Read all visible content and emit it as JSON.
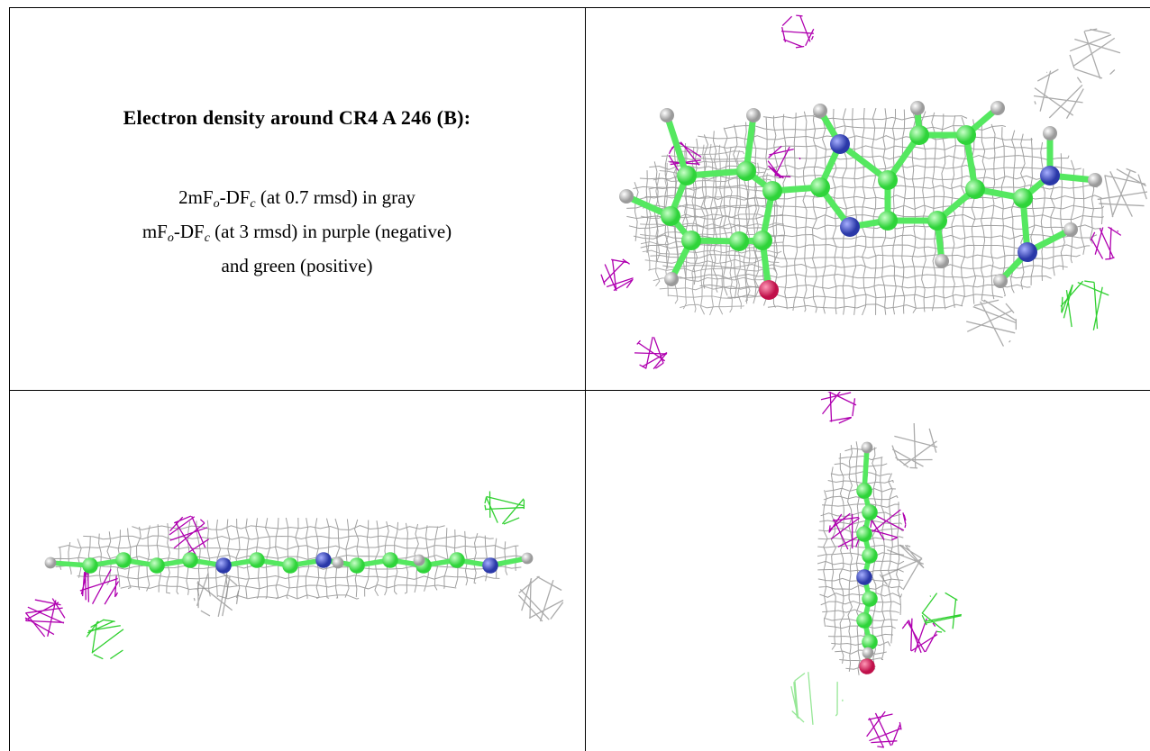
{
  "header": {
    "title": "Electron density around CR4 A 246 (B):"
  },
  "legend": {
    "lines": [
      [
        "2mF",
        "o",
        "-DF",
        "c",
        " (at 0.7 rmsd) in gray"
      ],
      [
        "mF",
        "o",
        "-DF",
        "c",
        " (at 3 rmsd) in purple (negative)"
      ],
      [
        "and green (positive)"
      ]
    ]
  }
}
